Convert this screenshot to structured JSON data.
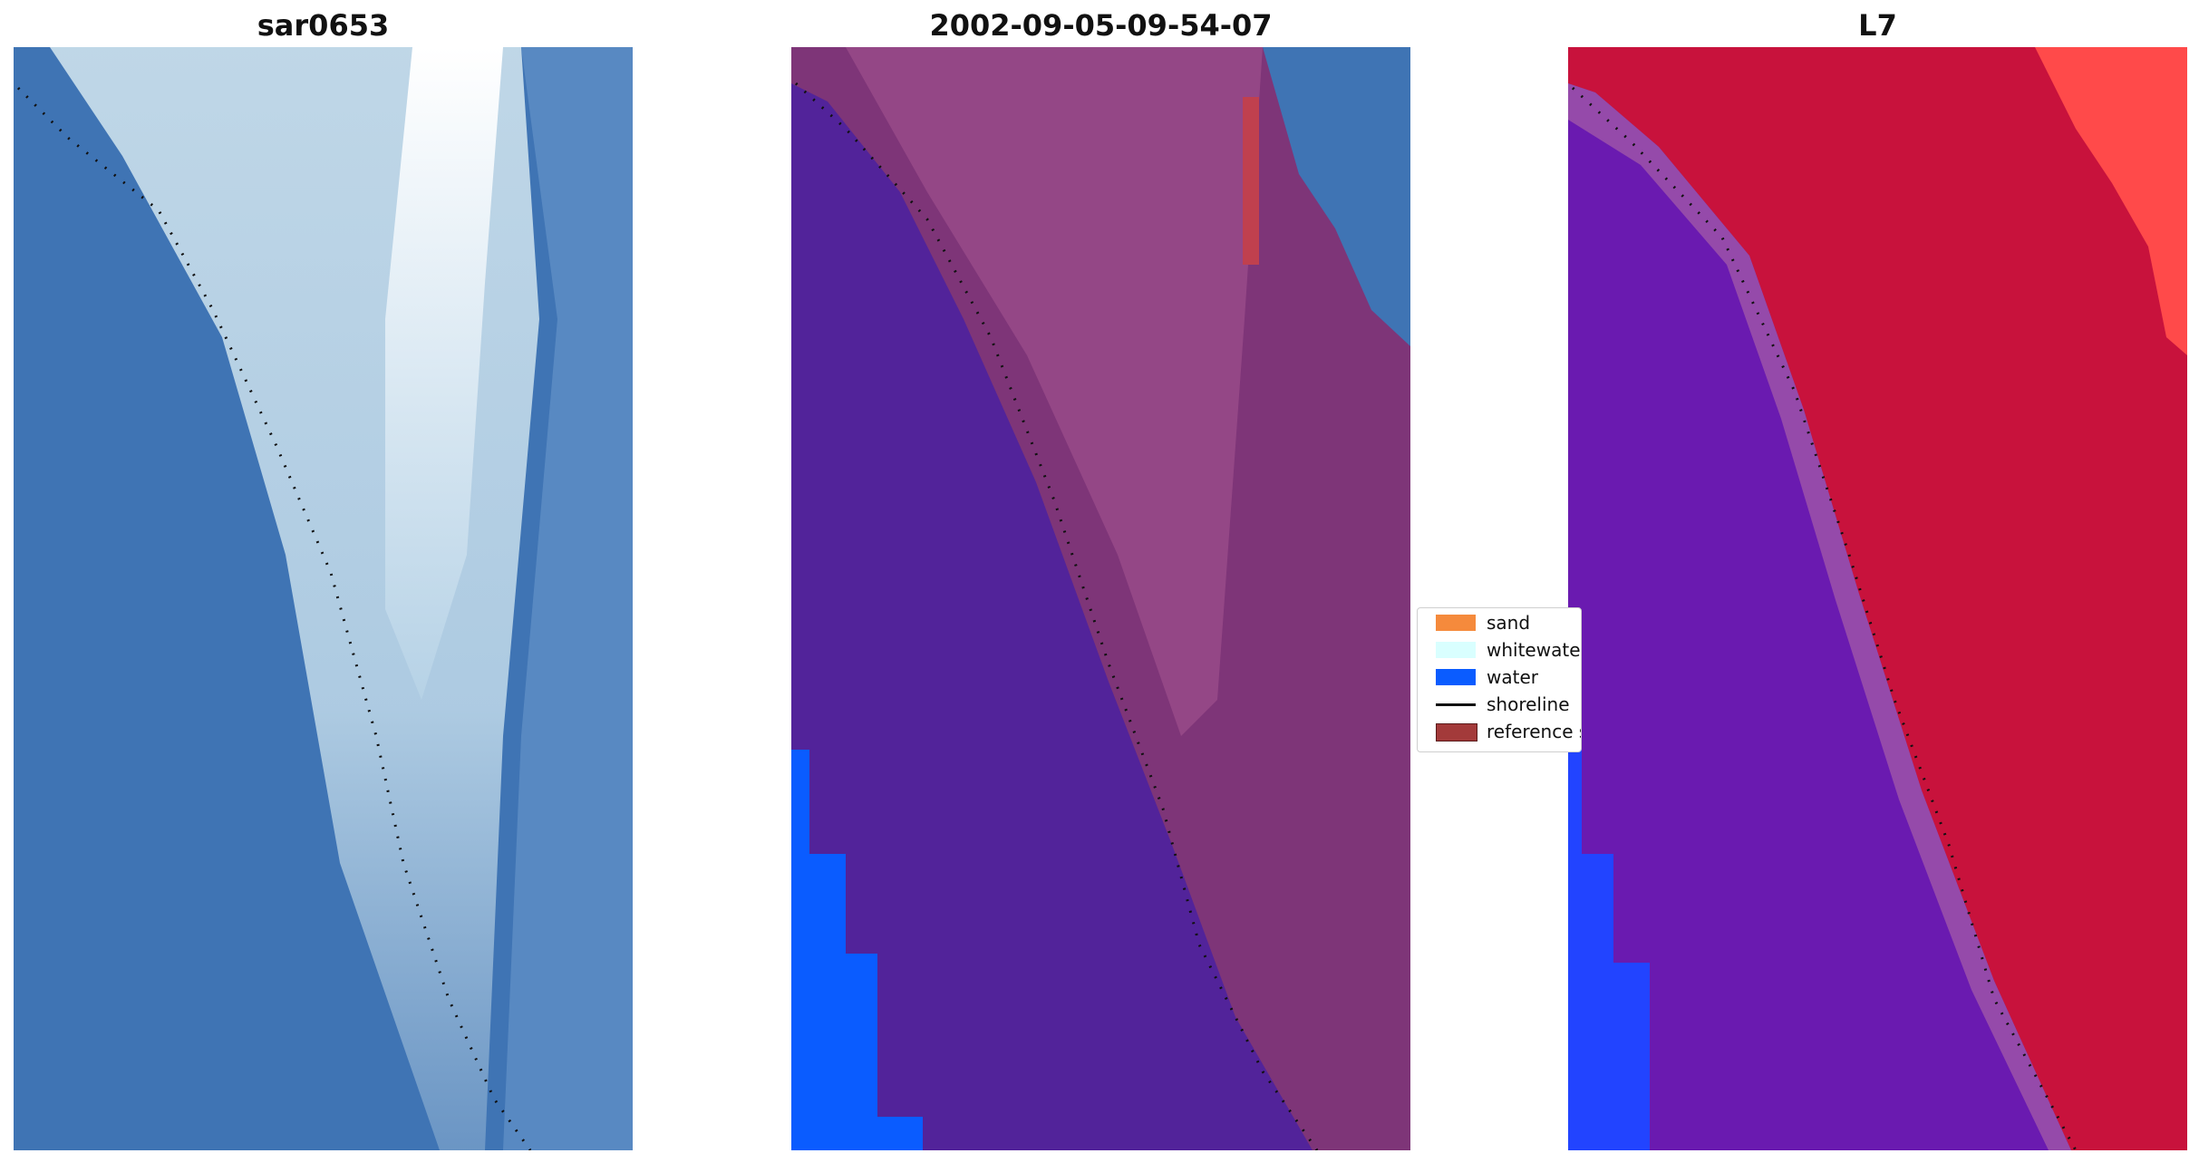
{
  "panels": [
    {
      "title": "sar0653"
    },
    {
      "title": "2002-09-05-09-54-07"
    },
    {
      "title": "L7"
    }
  ],
  "legend": {
    "items": [
      {
        "label": "sand",
        "color": "#f58a3c",
        "kind": "patch"
      },
      {
        "label": "whitewater",
        "color": "#d9ffff",
        "kind": "patch"
      },
      {
        "label": "water",
        "color": "#0a5cff",
        "kind": "patch"
      },
      {
        "label": "shoreline",
        "color": "#111111",
        "kind": "line"
      },
      {
        "label": "reference shoreline",
        "color": "#a33a3a",
        "kind": "patch"
      }
    ]
  },
  "colors": {
    "rgb_water": "#3f74b4",
    "rgb_surf": "#b9d3e6",
    "classified_background": "#52239a",
    "classified_land": "#7e3578",
    "classified_water": "#0a5cff",
    "classified_reference": "#c0404e",
    "falsecolor_water": "#6a1ab0",
    "falsecolor_land": "#c8123c",
    "falsecolor_bright": "#ff4a4a",
    "falsecolor_blue": "#2244ff"
  }
}
